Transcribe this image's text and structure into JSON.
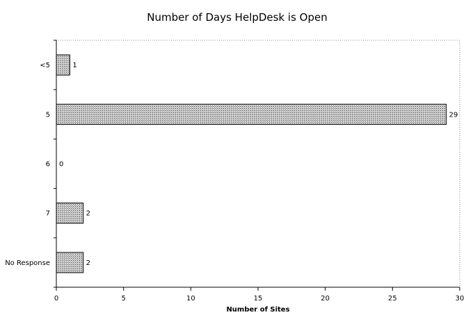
{
  "chart_data": {
    "type": "bar",
    "orientation": "horizontal",
    "title": "Number of Days HelpDesk is Open",
    "xlabel": "Number of Sites",
    "ylabel": "",
    "categories": [
      "<5",
      "5",
      "6",
      "7",
      "No Response"
    ],
    "values": [
      1,
      29,
      0,
      2,
      2
    ],
    "data_labels": [
      "1",
      "29",
      "0",
      "2",
      "2"
    ],
    "xlim": [
      0,
      30
    ],
    "x_ticks": [
      0,
      5,
      10,
      15,
      20,
      25,
      30
    ],
    "x_tick_labels": [
      "0",
      "5",
      "10",
      "15",
      "20",
      "25",
      "30"
    ],
    "grid": false,
    "legend": "none",
    "bar_pattern": "dotted-hatch"
  },
  "colors": {
    "background": "#ffffff",
    "bar_fill": "#a9a9a9",
    "bar_stroke": "#000000",
    "axis": "#000000",
    "plot_border": "#888888"
  }
}
